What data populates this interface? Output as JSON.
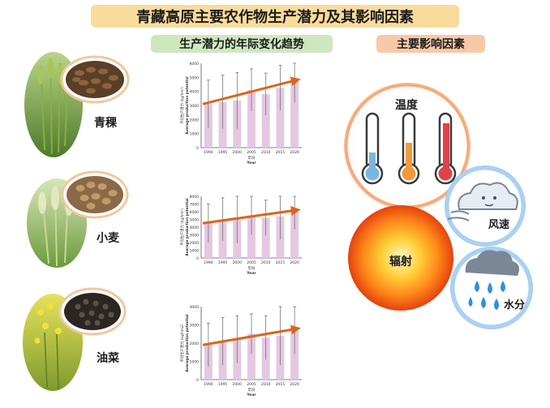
{
  "title": "青藏高原主要农作物生产潜力及其影响因素",
  "sections": {
    "trend": "生产潜力的年际变化趋势",
    "factors": "主要影响因素"
  },
  "crops": [
    {
      "name": "青稞",
      "seed_color": "#7a5a3a",
      "plant_color": "#6f9a3b"
    },
    {
      "name": "小麦",
      "seed_color": "#a9825a",
      "plant_color": "#8cb85a"
    },
    {
      "name": "油菜",
      "seed_color": "#2e2a26",
      "plant_color": "#b9c23c"
    }
  ],
  "factors": {
    "temperature": "温度",
    "wind": "风速",
    "radiation": "辐射",
    "water": "水分"
  },
  "thermometer_colors": [
    "#7ab6e0",
    "#f29a3a",
    "#e0414a"
  ],
  "chart_data": [
    {
      "type": "bar",
      "crop": "青稞",
      "categories": [
        "1990",
        "1995",
        "2000",
        "2005",
        "2010",
        "2015",
        "2020"
      ],
      "values": [
        3100,
        3250,
        3350,
        4100,
        3800,
        4250,
        4700
      ],
      "error": [
        1700,
        1900,
        2000,
        1500,
        1500,
        1600,
        1500
      ],
      "ylim": [
        0,
        6000
      ],
      "yticks": [
        "0",
        "1000",
        "2000",
        "3000",
        "4000",
        "5000",
        "6000"
      ],
      "ylabel": "平均生产潜力 (kg/hm²)",
      "ylabel_en": "Average production potential",
      "xlabel": "年份",
      "xlabel_en": "Year",
      "trend": "increasing",
      "bar_color": "#e4c8e2",
      "arrow_color": "#d9661c"
    },
    {
      "type": "bar",
      "crop": "小麦",
      "categories": [
        "1990",
        "1995",
        "2000",
        "2005",
        "2010",
        "2015",
        "2020"
      ],
      "values": [
        4500,
        5000,
        5000,
        5500,
        5200,
        5400,
        6000
      ],
      "error": [
        2500,
        2800,
        3100,
        2500,
        2300,
        3000,
        2300
      ],
      "ylim": [
        0,
        8000
      ],
      "yticks": [
        "0",
        "1000",
        "2000",
        "3000",
        "4000",
        "5000",
        "6000",
        "7000",
        "8000"
      ],
      "ylabel": "平均生产潜力 (kg/hm²)",
      "ylabel_en": "Average production potential",
      "xlabel": "年份",
      "xlabel_en": "Year",
      "trend": "increasing",
      "bar_color": "#e4c8e2",
      "arrow_color": "#d9661c"
    },
    {
      "type": "bar",
      "crop": "油菜",
      "categories": [
        "1990",
        "1995",
        "2000",
        "2005",
        "2010",
        "2015",
        "2020"
      ],
      "values": [
        1900,
        2100,
        2200,
        2500,
        2300,
        2400,
        2700
      ],
      "error": [
        1200,
        1300,
        1300,
        1100,
        1200,
        1600,
        1300
      ],
      "ylim": [
        0,
        4000
      ],
      "yticks": [
        "0",
        "1000",
        "2000",
        "3000",
        "4000"
      ],
      "ylabel": "平均生产潜力 (kg/hm2)",
      "ylabel_en": "Average production potential",
      "xlabel": "年份",
      "xlabel_en": "Year",
      "trend": "increasing",
      "bar_color": "#e4c8e2",
      "arrow_color": "#d9661c"
    }
  ]
}
